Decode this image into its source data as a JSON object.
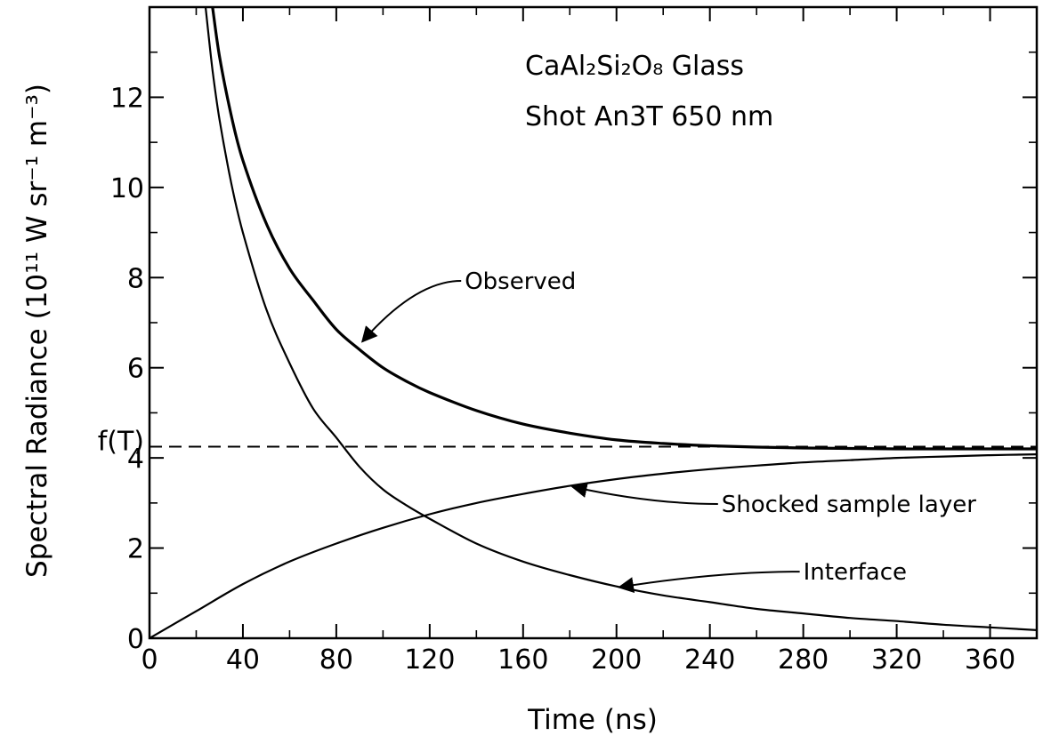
{
  "chart_data": {
    "type": "line",
    "title": "CaAl₂Si₂O₈ Glass",
    "subtitle": "Shot An3T  650 nm",
    "xlabel": "Time (ns)",
    "ylabel": "Spectral Radiance (10¹¹ W sr⁻¹ m⁻³)",
    "xlim": [
      0,
      380
    ],
    "ylim": [
      0,
      14
    ],
    "x_ticks": [
      "0",
      "40",
      "80",
      "120",
      "160",
      "200",
      "240",
      "280",
      "320",
      "360"
    ],
    "y_ticks": [
      "0",
      "2",
      "4",
      "6",
      "8",
      "10",
      "12"
    ],
    "grid": false,
    "series": [
      {
        "name": "Observed",
        "x": [
          27,
          30,
          35,
          40,
          50,
          60,
          70,
          80,
          90,
          100,
          110,
          120,
          140,
          160,
          180,
          200,
          220,
          240,
          260,
          280,
          300,
          320,
          340,
          360,
          380
        ],
        "y": [
          14.0,
          12.9,
          11.6,
          10.6,
          9.2,
          8.2,
          7.5,
          6.85,
          6.4,
          6.0,
          5.7,
          5.45,
          5.05,
          4.75,
          4.55,
          4.4,
          4.32,
          4.27,
          4.24,
          4.22,
          4.21,
          4.2,
          4.2,
          4.2,
          4.2
        ]
      },
      {
        "name": "Interface",
        "x": [
          24,
          27,
          30,
          35,
          40,
          50,
          60,
          70,
          80,
          90,
          100,
          110,
          120,
          140,
          160,
          180,
          200,
          220,
          240,
          260,
          280,
          300,
          320,
          340,
          360,
          380
        ],
        "y": [
          14.0,
          12.6,
          11.5,
          10.1,
          9.0,
          7.3,
          6.1,
          5.1,
          4.45,
          3.8,
          3.3,
          2.95,
          2.65,
          2.1,
          1.7,
          1.4,
          1.15,
          0.95,
          0.8,
          0.65,
          0.55,
          0.45,
          0.38,
          0.3,
          0.24,
          0.18
        ]
      },
      {
        "name": "Shocked sample layer",
        "x": [
          0,
          20,
          40,
          60,
          80,
          100,
          120,
          140,
          160,
          180,
          200,
          220,
          240,
          260,
          280,
          300,
          320,
          340,
          360,
          380
        ],
        "y": [
          0.0,
          0.6,
          1.2,
          1.7,
          2.1,
          2.45,
          2.75,
          3.0,
          3.2,
          3.38,
          3.53,
          3.65,
          3.75,
          3.83,
          3.9,
          3.95,
          4.0,
          4.03,
          4.06,
          4.08
        ]
      }
    ],
    "reference_line": {
      "label": "f(T)",
      "y": 4.25,
      "style": "dashed"
    },
    "annotations": [
      {
        "text": "Observed",
        "target_series": "Observed",
        "arrow_to": [
          90,
          6.6
        ],
        "text_at": [
          135,
          7.75
        ]
      },
      {
        "text": "Shocked sample layer",
        "target_series": "Shocked sample layer",
        "arrow_to": [
          180,
          3.38
        ],
        "text_at": [
          245,
          2.8
        ]
      },
      {
        "text": "Interface",
        "target_series": "Interface",
        "arrow_to": [
          200,
          1.15
        ],
        "text_at": [
          280,
          1.3
        ]
      }
    ]
  }
}
